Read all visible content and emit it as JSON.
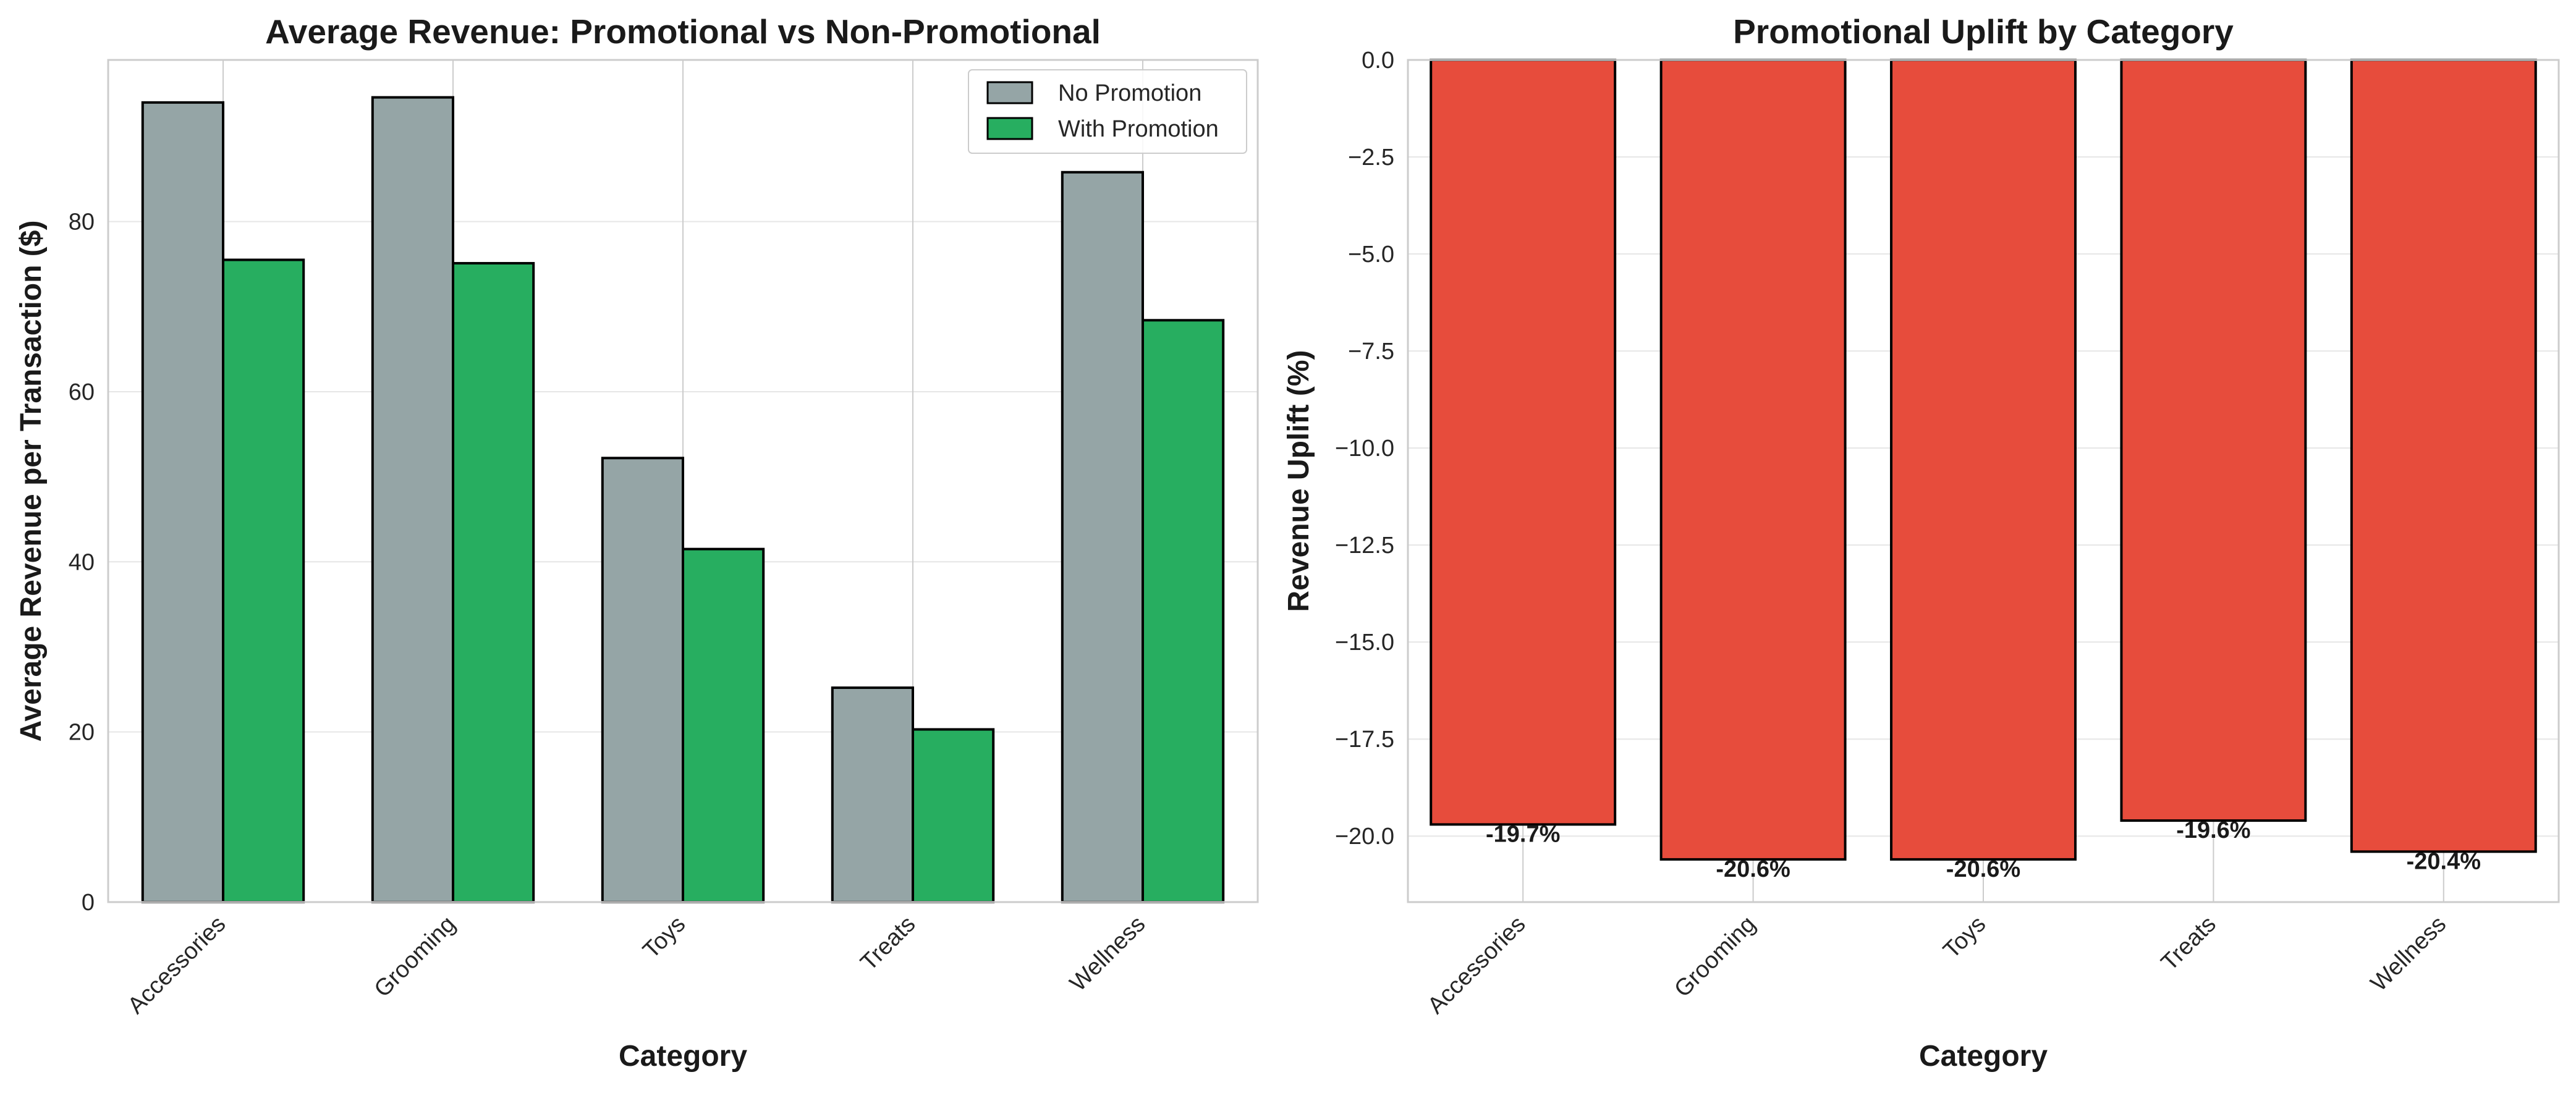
{
  "chart_data": [
    {
      "type": "bar",
      "title": "Average Revenue: Promotional vs Non-Promotional",
      "xlabel": "Category",
      "ylabel": "Average Revenue per Transaction ($)",
      "categories": [
        "Accessories",
        "Grooming",
        "Toys",
        "Treats",
        "Wellness"
      ],
      "series": [
        {
          "name": "No Promotion",
          "color": "#95a5a6",
          "values": [
            94.0,
            94.6,
            52.2,
            25.2,
            85.8
          ]
        },
        {
          "name": "With Promotion",
          "color": "#27ae60",
          "values": [
            75.5,
            75.1,
            41.5,
            20.3,
            68.4
          ]
        }
      ],
      "ylim": [
        0,
        99
      ],
      "yticks": [
        0,
        20,
        40,
        60,
        80
      ],
      "grid": true,
      "legend_position": "top-right"
    },
    {
      "type": "bar",
      "title": "Promotional Uplift by Category",
      "xlabel": "Category",
      "ylabel": "Revenue Uplift (%)",
      "categories": [
        "Accessories",
        "Grooming",
        "Toys",
        "Treats",
        "Wellness"
      ],
      "values": [
        -19.7,
        -20.6,
        -20.6,
        -19.6,
        -20.4
      ],
      "data_labels": [
        "-19.7%",
        "-20.6%",
        "-20.6%",
        "-19.6%",
        "-20.4%"
      ],
      "color": "#e74c3c",
      "ylim": [
        -21.7,
        0.0
      ],
      "yticks": [
        0.0,
        -2.5,
        -5.0,
        -7.5,
        -10.0,
        -12.5,
        -15.0,
        -17.5,
        -20.0
      ],
      "ytick_labels": [
        "0.0",
        "−2.5",
        "−5.0",
        "−7.5",
        "−10.0",
        "−12.5",
        "−15.0",
        "−17.5",
        "−20.0"
      ],
      "grid": true
    }
  ]
}
